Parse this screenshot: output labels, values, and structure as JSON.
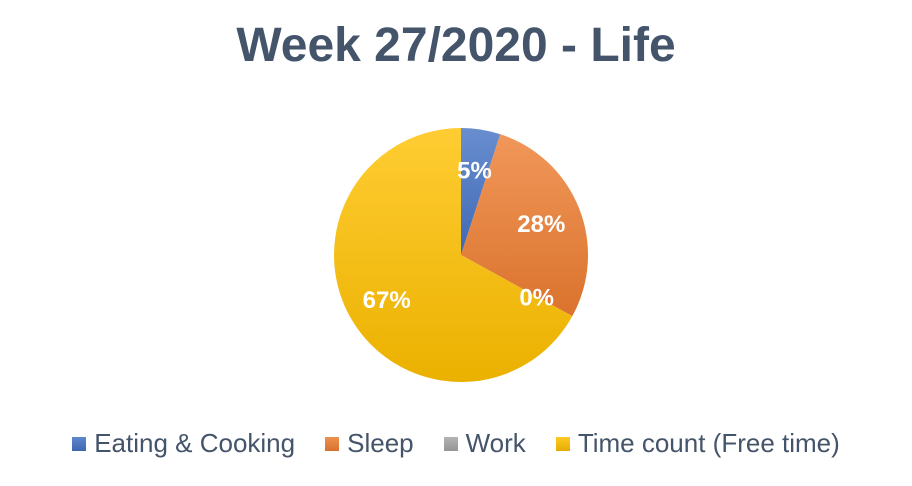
{
  "chart_data": {
    "type": "pie",
    "title": "Week 27/2020 - Life",
    "categories": [
      "Eating & Cooking",
      "Sleep",
      "Work",
      "Time count (Free time)"
    ],
    "values": [
      5,
      28,
      0,
      67
    ],
    "data_labels": [
      "5%",
      "28%",
      "0%",
      "67%"
    ],
    "colors": [
      "#4472c4",
      "#ed7d31",
      "#a5a5a5",
      "#ffc000"
    ],
    "legend_position": "bottom",
    "start_angle": "12 o'clock",
    "direction": "clockwise"
  }
}
